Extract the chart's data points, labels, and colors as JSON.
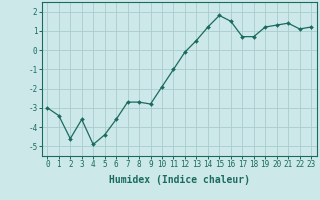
{
  "x": [
    0,
    1,
    2,
    3,
    4,
    5,
    6,
    7,
    8,
    9,
    10,
    11,
    12,
    13,
    14,
    15,
    16,
    17,
    18,
    19,
    20,
    21,
    22,
    23
  ],
  "y": [
    -3.0,
    -3.4,
    -4.6,
    -3.6,
    -4.9,
    -4.4,
    -3.6,
    -2.7,
    -2.7,
    -2.8,
    -1.9,
    -1.0,
    -0.1,
    0.5,
    1.2,
    1.8,
    1.5,
    0.7,
    0.7,
    1.2,
    1.3,
    1.4,
    1.1,
    1.2
  ],
  "xlabel": "Humidex (Indice chaleur)",
  "xlim": [
    -0.5,
    23.5
  ],
  "ylim": [
    -5.5,
    2.5
  ],
  "yticks": [
    -5,
    -4,
    -3,
    -2,
    -1,
    0,
    1,
    2
  ],
  "xticks": [
    0,
    1,
    2,
    3,
    4,
    5,
    6,
    7,
    8,
    9,
    10,
    11,
    12,
    13,
    14,
    15,
    16,
    17,
    18,
    19,
    20,
    21,
    22,
    23
  ],
  "line_color": "#1a6b5e",
  "marker": "D",
  "marker_size": 2.0,
  "bg_color": "#cce8e8",
  "grid_color": "#aacccc",
  "tick_label_fontsize": 5.5,
  "xlabel_fontsize": 7.0,
  "line_width": 0.9
}
